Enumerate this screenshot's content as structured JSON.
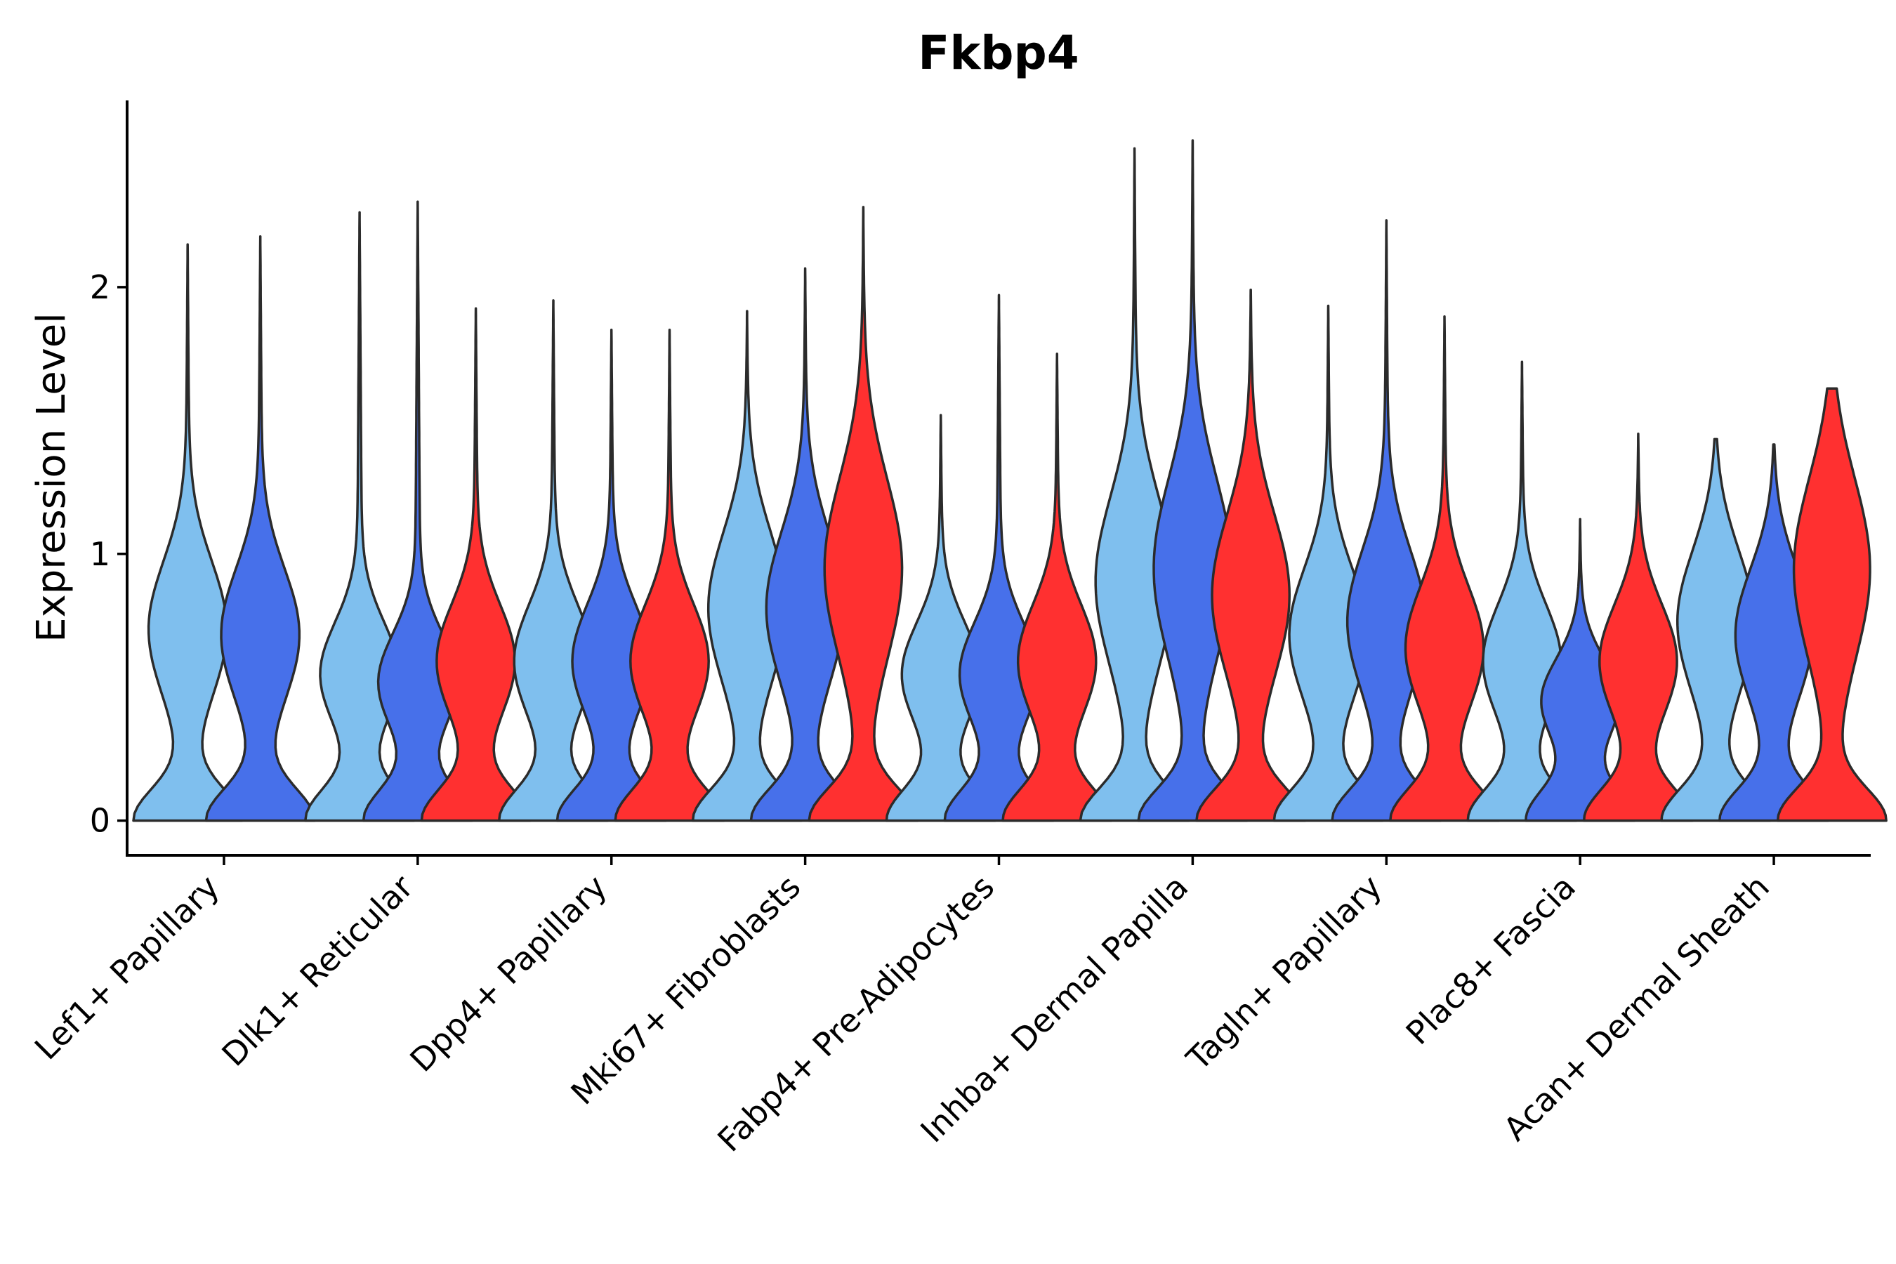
{
  "chart_data": {
    "type": "violin",
    "title": "Fkbp4",
    "xlabel": "",
    "ylabel": "Expression Level",
    "ylim": [
      -0.13,
      2.7
    ],
    "yticks": [
      0,
      1,
      2
    ],
    "ytick_labels": [
      "0",
      "1",
      "2"
    ],
    "categories": [
      "Lef1+ Papillary",
      "Dlk1+ Reticular",
      "Dpp4+ Papillary",
      "Mki67+ Fibroblasts",
      "Fabp4+ Pre-Adipocytes",
      "Inhba+ Dermal Papilla",
      "Tagln+ Papillary",
      "Plac8+ Fascia",
      "Acan+ Dermal Sheath"
    ],
    "series_colors": [
      "#7fbfee",
      "#4770ea",
      "#ff3030"
    ],
    "violins": [
      {
        "category": "Lef1+ Papillary",
        "group": 0,
        "max": 2.16,
        "mode": 0.72
      },
      {
        "category": "Lef1+ Papillary",
        "group": 1,
        "max": 2.19,
        "mode": 0.7
      },
      {
        "category": "Dlk1+ Reticular",
        "group": 0,
        "max": 2.28,
        "mode": 0.55
      },
      {
        "category": "Dlk1+ Reticular",
        "group": 1,
        "max": 2.32,
        "mode": 0.52
      },
      {
        "category": "Dlk1+ Reticular",
        "group": 2,
        "max": 1.92,
        "mode": 0.6
      },
      {
        "category": "Dpp4+ Papillary",
        "group": 0,
        "max": 1.95,
        "mode": 0.6
      },
      {
        "category": "Dpp4+ Papillary",
        "group": 1,
        "max": 1.84,
        "mode": 0.6
      },
      {
        "category": "Dpp4+ Papillary",
        "group": 2,
        "max": 1.84,
        "mode": 0.6
      },
      {
        "category": "Mki67+ Fibroblasts",
        "group": 0,
        "max": 1.91,
        "mode": 0.8
      },
      {
        "category": "Mki67+ Fibroblasts",
        "group": 1,
        "max": 2.07,
        "mode": 0.8
      },
      {
        "category": "Mki67+ Fibroblasts",
        "group": 2,
        "max": 2.3,
        "mode": 0.95
      },
      {
        "category": "Fabp4+ Pre-Adipocytes",
        "group": 0,
        "max": 1.52,
        "mode": 0.55
      },
      {
        "category": "Fabp4+ Pre-Adipocytes",
        "group": 1,
        "max": 1.97,
        "mode": 0.55
      },
      {
        "category": "Fabp4+ Pre-Adipocytes",
        "group": 2,
        "max": 1.75,
        "mode": 0.6
      },
      {
        "category": "Inhba+ Dermal Papilla",
        "group": 0,
        "max": 2.52,
        "mode": 0.9
      },
      {
        "category": "Inhba+ Dermal Papilla",
        "group": 1,
        "max": 2.55,
        "mode": 0.95
      },
      {
        "category": "Inhba+ Dermal Papilla",
        "group": 2,
        "max": 1.99,
        "mode": 0.85
      },
      {
        "category": "Tagln+ Papillary",
        "group": 0,
        "max": 1.93,
        "mode": 0.7
      },
      {
        "category": "Tagln+ Papillary",
        "group": 1,
        "max": 2.25,
        "mode": 0.75
      },
      {
        "category": "Tagln+ Papillary",
        "group": 2,
        "max": 1.89,
        "mode": 0.65
      },
      {
        "category": "Plac8+ Fascia",
        "group": 0,
        "max": 1.72,
        "mode": 0.6
      },
      {
        "category": "Plac8+ Fascia",
        "group": 1,
        "max": 1.13,
        "mode": 0.45
      },
      {
        "category": "Plac8+ Fascia",
        "group": 2,
        "max": 1.45,
        "mode": 0.6
      },
      {
        "category": "Acan+ Dermal Sheath",
        "group": 0,
        "max": 1.43,
        "mode": 0.75
      },
      {
        "category": "Acan+ Dermal Sheath",
        "group": 1,
        "max": 1.41,
        "mode": 0.7
      },
      {
        "category": "Acan+ Dermal Sheath",
        "group": 2,
        "max": 1.62,
        "mode": 0.95
      }
    ]
  }
}
